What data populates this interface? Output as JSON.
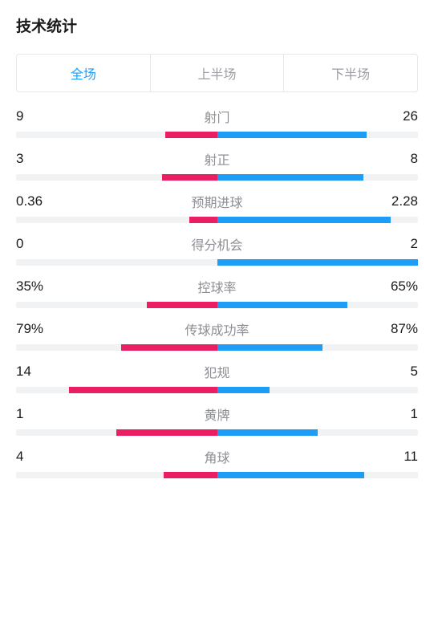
{
  "title": "技术统计",
  "tabs": [
    {
      "label": "全场",
      "active": true
    },
    {
      "label": "上半场",
      "active": false
    },
    {
      "label": "下半场",
      "active": false
    }
  ],
  "colors": {
    "left_bar": "#e91e63",
    "right_bar": "#1e9df7",
    "bar_bg": "#f1f2f4",
    "active_tab": "#1e9df7",
    "inactive_tab": "#9b9da2",
    "label_color": "#8c8e93",
    "value_color": "#1a1a1a"
  },
  "stats": [
    {
      "name": "射门",
      "left_display": "9",
      "right_display": "26",
      "left_pct": 25.7,
      "right_pct": 74.3
    },
    {
      "name": "射正",
      "left_display": "3",
      "right_display": "8",
      "left_pct": 27.3,
      "right_pct": 72.7
    },
    {
      "name": "预期进球",
      "left_display": "0.36",
      "right_display": "2.28",
      "left_pct": 13.6,
      "right_pct": 86.4
    },
    {
      "name": "得分机会",
      "left_display": "0",
      "right_display": "2",
      "left_pct": 0,
      "right_pct": 100
    },
    {
      "name": "控球率",
      "left_display": "35%",
      "right_display": "65%",
      "left_pct": 35,
      "right_pct": 65
    },
    {
      "name": "传球成功率",
      "left_display": "79%",
      "right_display": "87%",
      "left_pct": 47.6,
      "right_pct": 52.4
    },
    {
      "name": "犯规",
      "left_display": "14",
      "right_display": "5",
      "left_pct": 73.7,
      "right_pct": 26.3
    },
    {
      "name": "黄牌",
      "left_display": "1",
      "right_display": "1",
      "left_pct": 50,
      "right_pct": 50
    },
    {
      "name": "角球",
      "left_display": "4",
      "right_display": "11",
      "left_pct": 26.7,
      "right_pct": 73.3
    }
  ]
}
